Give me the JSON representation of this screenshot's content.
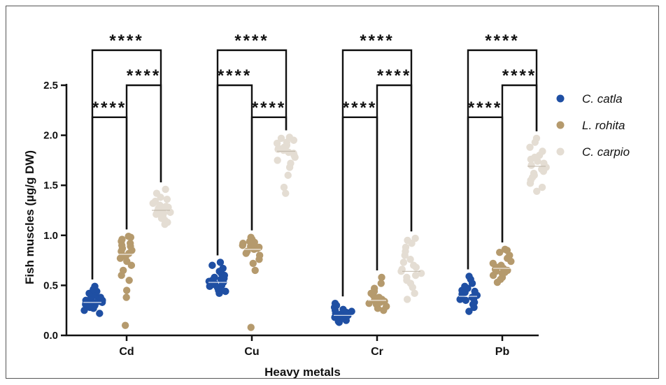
{
  "chart_data": {
    "type": "scatter",
    "title": "",
    "xlabel": "Heavy metals",
    "ylabel": "Fish muscles (µg/g DW)",
    "categories": [
      "Cd",
      "Cu",
      "Cr",
      "Pb"
    ],
    "ylim": [
      0,
      2.5
    ],
    "yticks": [
      "0.0",
      "0.5",
      "1.0",
      "1.5",
      "2.0",
      "2.5"
    ],
    "grid": false,
    "legend_position": "right",
    "series": [
      {
        "name": "C. catla",
        "color": "#1f4fa3",
        "values": [
          [
            0.22,
            0.25,
            0.27,
            0.28,
            0.3,
            0.3,
            0.31,
            0.32,
            0.33,
            0.33,
            0.34,
            0.35,
            0.35,
            0.36,
            0.37,
            0.38,
            0.39,
            0.4,
            0.42,
            0.44,
            0.46,
            0.49
          ],
          [
            0.42,
            0.44,
            0.45,
            0.47,
            0.48,
            0.49,
            0.5,
            0.51,
            0.52,
            0.53,
            0.54,
            0.55,
            0.56,
            0.57,
            0.58,
            0.6,
            0.62,
            0.64,
            0.67,
            0.7,
            0.73
          ],
          [
            0.13,
            0.14,
            0.15,
            0.16,
            0.17,
            0.18,
            0.18,
            0.19,
            0.2,
            0.2,
            0.21,
            0.22,
            0.23,
            0.24,
            0.25,
            0.26,
            0.28,
            0.3,
            0.32
          ],
          [
            0.24,
            0.28,
            0.31,
            0.33,
            0.35,
            0.36,
            0.37,
            0.38,
            0.39,
            0.4,
            0.41,
            0.42,
            0.43,
            0.44,
            0.45,
            0.47,
            0.49,
            0.52,
            0.56,
            0.59
          ]
        ]
      },
      {
        "name": "L. rohita",
        "color": "#b59a6d",
        "values": [
          [
            0.1,
            0.38,
            0.45,
            0.55,
            0.6,
            0.65,
            0.7,
            0.74,
            0.77,
            0.79,
            0.8,
            0.82,
            0.84,
            0.85,
            0.87,
            0.89,
            0.9,
            0.92,
            0.94,
            0.96,
            0.98,
            0.99
          ],
          [
            0.08,
            0.65,
            0.72,
            0.76,
            0.8,
            0.82,
            0.84,
            0.86,
            0.87,
            0.88,
            0.89,
            0.9,
            0.91,
            0.92,
            0.93,
            0.94,
            0.96,
            0.98
          ],
          [
            0.25,
            0.27,
            0.29,
            0.31,
            0.32,
            0.33,
            0.34,
            0.35,
            0.36,
            0.37,
            0.38,
            0.4,
            0.42,
            0.44,
            0.47,
            0.52,
            0.58
          ],
          [
            0.53,
            0.56,
            0.58,
            0.6,
            0.62,
            0.63,
            0.64,
            0.65,
            0.66,
            0.67,
            0.68,
            0.7,
            0.72,
            0.74,
            0.77,
            0.8,
            0.83,
            0.85,
            0.86
          ]
        ]
      },
      {
        "name": "C. carpio",
        "color": "#e4ddd3",
        "values": [
          [
            1.11,
            1.13,
            1.15,
            1.17,
            1.19,
            1.2,
            1.21,
            1.22,
            1.23,
            1.24,
            1.25,
            1.26,
            1.27,
            1.28,
            1.29,
            1.3,
            1.32,
            1.34,
            1.36,
            1.38,
            1.42,
            1.46
          ],
          [
            1.42,
            1.48,
            1.6,
            1.68,
            1.72,
            1.75,
            1.78,
            1.8,
            1.82,
            1.83,
            1.85,
            1.86,
            1.87,
            1.88,
            1.89,
            1.9,
            1.92,
            1.93,
            1.95,
            1.97,
            1.98
          ],
          [
            0.36,
            0.42,
            0.48,
            0.52,
            0.55,
            0.58,
            0.6,
            0.62,
            0.64,
            0.66,
            0.68,
            0.7,
            0.73,
            0.76,
            0.8,
            0.84,
            0.88,
            0.92,
            0.95,
            0.97
          ],
          [
            1.44,
            1.48,
            1.52,
            1.55,
            1.58,
            1.6,
            1.62,
            1.64,
            1.66,
            1.68,
            1.7,
            1.72,
            1.74,
            1.76,
            1.78,
            1.8,
            1.84,
            1.88,
            1.93,
            1.97
          ]
        ]
      }
    ],
    "means": [
      [
        0.33,
        0.81,
        1.25
      ],
      [
        0.53,
        0.86,
        1.84
      ],
      [
        0.2,
        0.35,
        0.64
      ],
      [
        0.39,
        0.67,
        1.69
      ]
    ],
    "significance": [
      {
        "category": "Cd",
        "brackets": [
          {
            "from": 0,
            "to": 1,
            "y": 2.18,
            "label": "****"
          },
          {
            "from": 1,
            "to": 2,
            "y": 2.5,
            "label": "****"
          },
          {
            "from": 0,
            "to": 2,
            "y": 2.85,
            "label": "****"
          }
        ]
      },
      {
        "category": "Cu",
        "brackets": [
          {
            "from": 0,
            "to": 1,
            "y": 2.5,
            "label": "****"
          },
          {
            "from": 1,
            "to": 2,
            "y": 2.18,
            "label": "****"
          },
          {
            "from": 0,
            "to": 2,
            "y": 2.85,
            "label": "****"
          }
        ]
      },
      {
        "category": "Cr",
        "brackets": [
          {
            "from": 0,
            "to": 1,
            "y": 2.18,
            "label": "****"
          },
          {
            "from": 1,
            "to": 2,
            "y": 2.5,
            "label": "****"
          },
          {
            "from": 0,
            "to": 2,
            "y": 2.85,
            "label": "****"
          }
        ]
      },
      {
        "category": "Pb",
        "brackets": [
          {
            "from": 0,
            "to": 1,
            "y": 2.18,
            "label": "****"
          },
          {
            "from": 1,
            "to": 2,
            "y": 2.5,
            "label": "****"
          },
          {
            "from": 0,
            "to": 2,
            "y": 2.85,
            "label": "****"
          }
        ]
      }
    ]
  }
}
